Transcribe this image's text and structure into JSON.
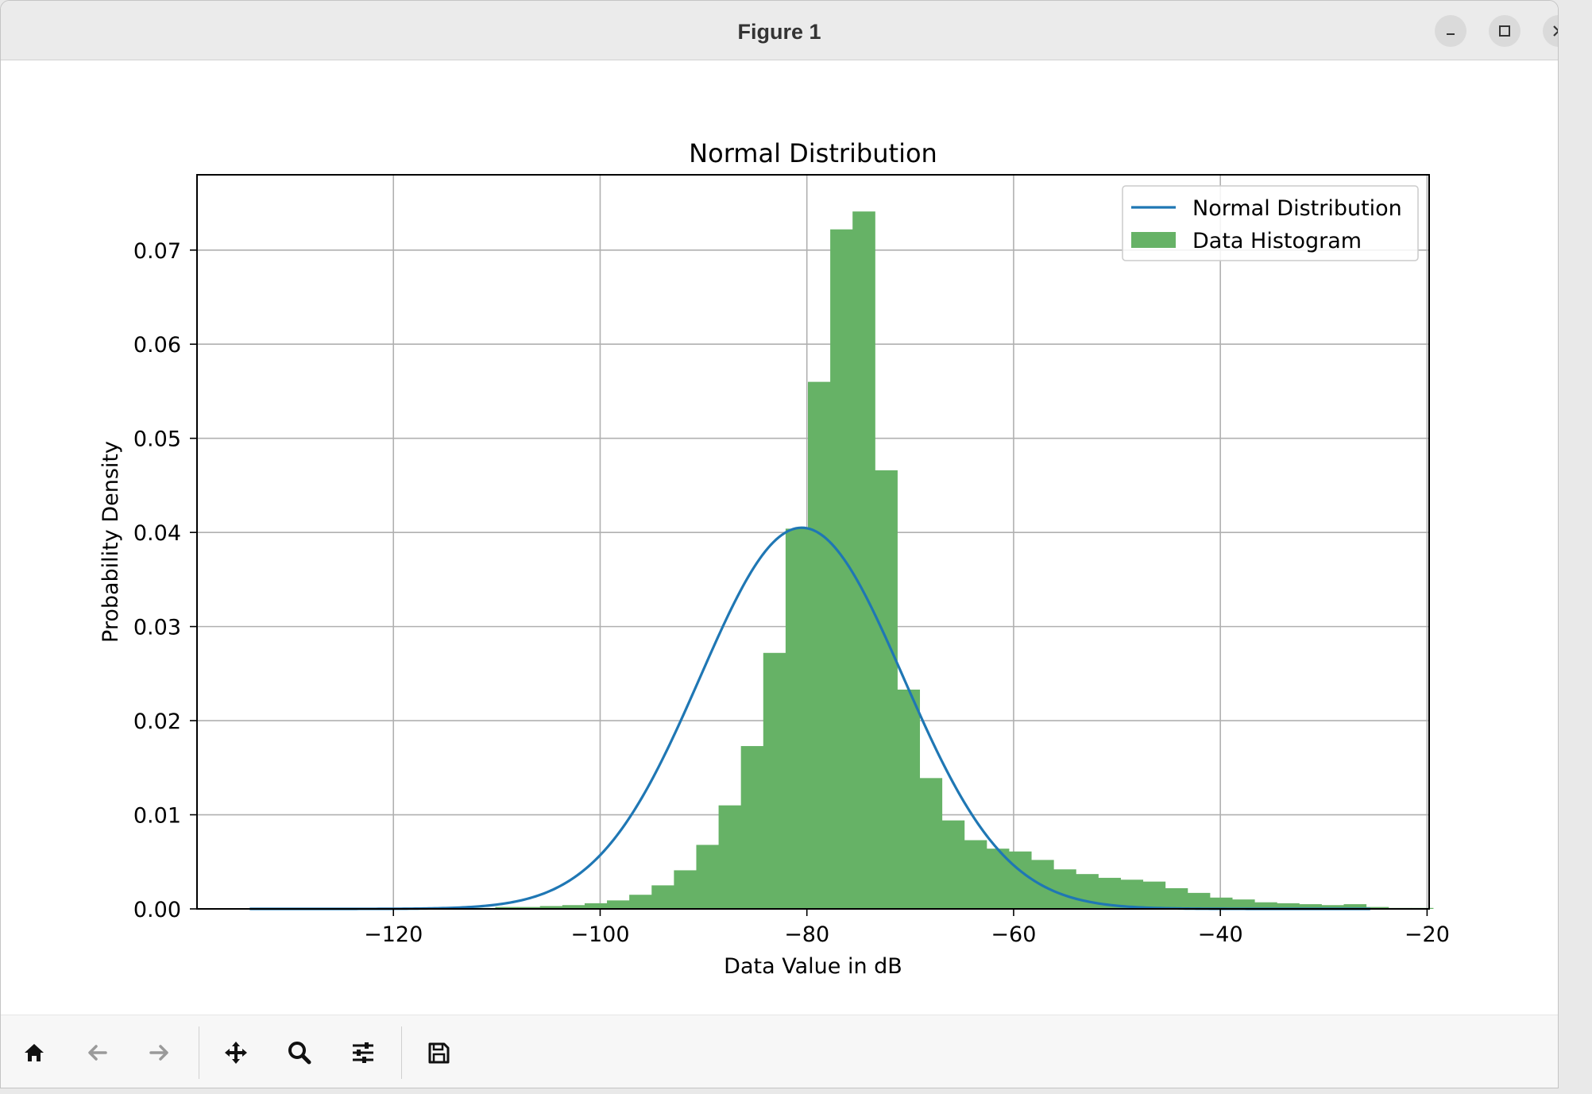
{
  "window": {
    "title": "Figure 1"
  },
  "toolbar": {
    "tools": [
      "home-icon",
      "back-arrow-icon",
      "forward-arrow-icon",
      "pan-icon",
      "zoom-icon",
      "configure-subplots-icon",
      "save-icon"
    ]
  },
  "colors": {
    "histogram": "#66b266",
    "normal_curve": "#1f77b4",
    "grid": "#b0b0b0"
  },
  "chart_data": {
    "type": "bar",
    "title": "Normal Distribution",
    "xlabel": "Data Value in dB",
    "ylabel": "Probability Density",
    "xlim": [
      -139,
      -19.8
    ],
    "ylim": [
      0,
      0.078
    ],
    "xticks": [
      -120,
      -100,
      -80,
      -60,
      -40,
      -20
    ],
    "xtick_labels": [
      "−120",
      "−100",
      "−80",
      "−60",
      "−40",
      "−20"
    ],
    "yticks": [
      0.0,
      0.01,
      0.02,
      0.03,
      0.04,
      0.05,
      0.06,
      0.07
    ],
    "ytick_labels": [
      "0.00",
      "0.01",
      "0.02",
      "0.03",
      "0.04",
      "0.05",
      "0.06",
      "0.07"
    ],
    "grid": true,
    "legend": {
      "position": "top-right",
      "entries": [
        "Normal Distribution",
        "Data Histogram"
      ]
    },
    "series": [
      {
        "name": "Data Histogram",
        "type": "histogram",
        "bin_start": -133.9,
        "bin_width": 2.16,
        "values": [
          0.0001,
          0.0001,
          0.0001,
          0.0001,
          0.0001,
          0.0001,
          0.0001,
          0.0001,
          0.0001,
          0.0001,
          0.0001,
          0.0002,
          0.0002,
          0.0003,
          0.0004,
          0.0006,
          0.0009,
          0.0015,
          0.0025,
          0.0041,
          0.0068,
          0.011,
          0.0173,
          0.0272,
          0.0404,
          0.056,
          0.0722,
          0.0741,
          0.0466,
          0.0233,
          0.0139,
          0.0094,
          0.0073,
          0.0064,
          0.0061,
          0.0052,
          0.0042,
          0.0037,
          0.0033,
          0.0031,
          0.0029,
          0.0022,
          0.0017,
          0.0012,
          0.001,
          0.0007,
          0.0006,
          0.0005,
          0.0004,
          0.0005,
          0.0002,
          0.0001,
          0.0001
        ]
      },
      {
        "name": "Normal Distribution",
        "type": "line",
        "mean": -80.5,
        "std": 9.85,
        "x_range": [
          -133.9,
          -25.5
        ]
      }
    ]
  }
}
